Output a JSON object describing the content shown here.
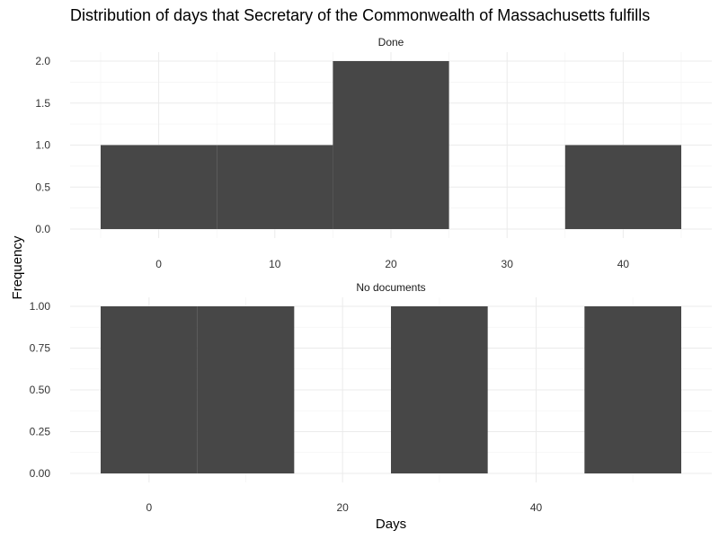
{
  "chart_data": {
    "type": "bar",
    "title": "Distribution of days that Secretary of the Commonwealth of Massachusetts fulfills",
    "xlabel": "Days",
    "ylabel": "Frequency",
    "grid": true,
    "panels": [
      {
        "strip_label": "Done",
        "xlim": [
          -5,
          45
        ],
        "ylim": [
          0,
          2
        ],
        "x_ticks": [
          0,
          10,
          20,
          30,
          40
        ],
        "x_tick_labels": [
          "0",
          "10",
          "20",
          "30",
          "40"
        ],
        "y_ticks": [
          0,
          0.5,
          1,
          1.5,
          2
        ],
        "y_tick_labels": [
          "0.0",
          "0.5",
          "1.0",
          "1.5",
          "2.0"
        ],
        "bins": [
          {
            "x0": -5,
            "x1": 5,
            "count": 1
          },
          {
            "x0": 5,
            "x1": 15,
            "count": 1
          },
          {
            "x0": 15,
            "x1": 25,
            "count": 2
          },
          {
            "x0": 25,
            "x1": 35,
            "count": 0
          },
          {
            "x0": 35,
            "x1": 45,
            "count": 1
          }
        ]
      },
      {
        "strip_label": "No documents",
        "xlim": [
          -5,
          55
        ],
        "ylim": [
          0,
          1
        ],
        "x_ticks": [
          0,
          20,
          40
        ],
        "x_tick_labels": [
          "0",
          "20",
          "40"
        ],
        "y_ticks": [
          0,
          0.25,
          0.5,
          0.75,
          1
        ],
        "y_tick_labels": [
          "0.00",
          "0.25",
          "0.50",
          "0.75",
          "1.00"
        ],
        "bins": [
          {
            "x0": -5,
            "x1": 5,
            "count": 1
          },
          {
            "x0": 5,
            "x1": 15,
            "count": 1
          },
          {
            "x0": 15,
            "x1": 25,
            "count": 0
          },
          {
            "x0": 25,
            "x1": 35,
            "count": 1
          },
          {
            "x0": 35,
            "x1": 45,
            "count": 0
          },
          {
            "x0": 45,
            "x1": 55,
            "count": 1
          }
        ]
      }
    ]
  }
}
